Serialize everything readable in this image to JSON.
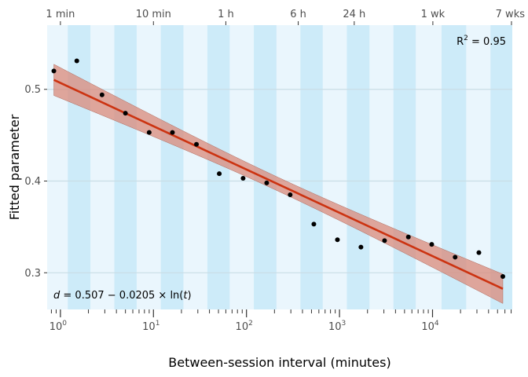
{
  "chart_data": {
    "type": "scatter",
    "title": "",
    "xlabel": "Between-session interval (minutes)",
    "ylabel": "Fitted parameter",
    "x_scale": "log10",
    "xlim": [
      0.72,
      72000
    ],
    "ylim": [
      0.26,
      0.57
    ],
    "grid": true,
    "bottom_ticks": [
      {
        "value": 1,
        "base": "10",
        "exp": "0"
      },
      {
        "value": 10,
        "base": "10",
        "exp": "1"
      },
      {
        "value": 100,
        "base": "10",
        "exp": "2"
      },
      {
        "value": 1000,
        "base": "10",
        "exp": "3"
      },
      {
        "value": 10000,
        "base": "10",
        "exp": "4"
      }
    ],
    "top_ticks": [
      {
        "value": 1,
        "label": "1 min"
      },
      {
        "value": 10,
        "label": "10 min"
      },
      {
        "value": 60,
        "label": "1 h"
      },
      {
        "value": 360,
        "label": "6 h"
      },
      {
        "value": 1440,
        "label": "24 h"
      },
      {
        "value": 10080,
        "label": "1 wk"
      },
      {
        "value": 70560,
        "label": "7 wks"
      }
    ],
    "y_ticks": [
      {
        "value": 0.3,
        "label": "0.3"
      },
      {
        "value": 0.4,
        "label": "0.4"
      },
      {
        "value": 0.5,
        "label": "0.5"
      }
    ],
    "points": [
      {
        "x": 0.85,
        "y": 0.52
      },
      {
        "x": 1.5,
        "y": 0.531
      },
      {
        "x": 2.8,
        "y": 0.494
      },
      {
        "x": 5.0,
        "y": 0.474
      },
      {
        "x": 9.0,
        "y": 0.453
      },
      {
        "x": 16.0,
        "y": 0.453
      },
      {
        "x": 29.0,
        "y": 0.44
      },
      {
        "x": 51.0,
        "y": 0.408
      },
      {
        "x": 92.0,
        "y": 0.403
      },
      {
        "x": 165.0,
        "y": 0.398
      },
      {
        "x": 295.0,
        "y": 0.385
      },
      {
        "x": 530.0,
        "y": 0.353
      },
      {
        "x": 950.0,
        "y": 0.336
      },
      {
        "x": 1700.0,
        "y": 0.328
      },
      {
        "x": 3050.0,
        "y": 0.335
      },
      {
        "x": 5500.0,
        "y": 0.339
      },
      {
        "x": 9800.0,
        "y": 0.331
      },
      {
        "x": 17500.0,
        "y": 0.317
      },
      {
        "x": 31500.0,
        "y": 0.322
      },
      {
        "x": 57000.0,
        "y": 0.296
      }
    ],
    "fit": {
      "intercept": 0.507,
      "slope": -0.0205,
      "x_start": 0.85,
      "x_end": 57000,
      "ci_halfwidth_start": 0.017,
      "ci_halfwidth_mid": 0.0075,
      "ci_halfwidth_end": 0.016,
      "line_color": "#cc3311",
      "band_color": "#d98a7a"
    },
    "bands": [
      {
        "from": 1.2,
        "to": 2.1
      },
      {
        "from": 3.8,
        "to": 6.6
      },
      {
        "from": 12,
        "to": 21
      },
      {
        "from": 38,
        "to": 66
      },
      {
        "from": 120,
        "to": 210
      },
      {
        "from": 380,
        "to": 660
      },
      {
        "from": 1200,
        "to": 2100
      },
      {
        "from": 3800,
        "to": 6600
      },
      {
        "from": 12500,
        "to": 23000
      },
      {
        "from": 42000,
        "to": 72000
      }
    ],
    "colors": {
      "panel_bg": "#eaf6fd",
      "band": "#cdebf9",
      "grid": "#c9dde6",
      "point": "#000000"
    },
    "annotations": {
      "r2_prefix": "R",
      "r2_sup": "2",
      "r2_value": " = 0.95",
      "eq_var": "d",
      "eq_body": " = 0.507 − 0.0205 × ln(",
      "eq_t": "t",
      "eq_close": ")"
    }
  }
}
